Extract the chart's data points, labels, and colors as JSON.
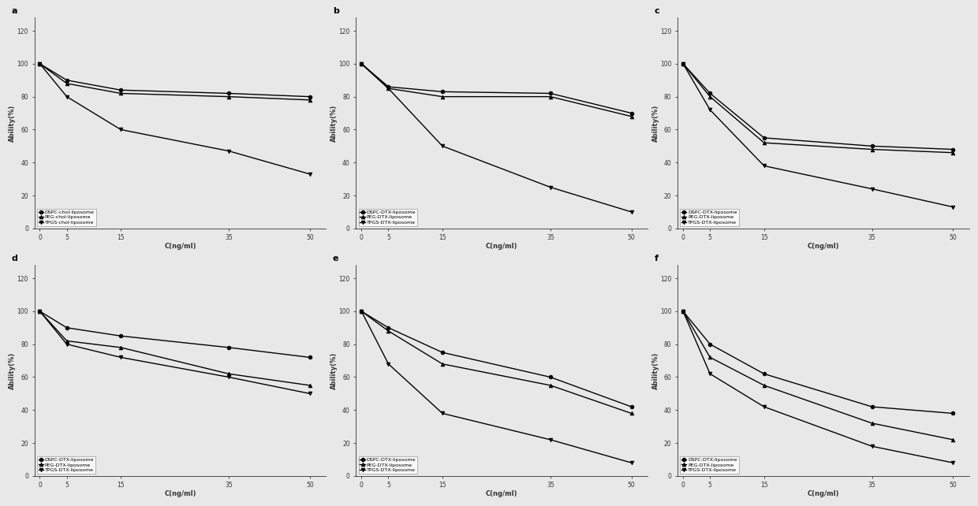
{
  "x": [
    0,
    5,
    15,
    35,
    50
  ],
  "subplots": [
    {
      "label": "a",
      "series": [
        {
          "name": "DSPC-chol-liposome",
          "y": [
            100,
            90,
            84,
            82,
            80
          ],
          "marker": "o"
        },
        {
          "name": "PEG-chol-liposome",
          "y": [
            100,
            88,
            82,
            80,
            78
          ],
          "marker": "^"
        },
        {
          "name": "TPGS-chol-liposome",
          "y": [
            100,
            80,
            60,
            47,
            33
          ],
          "marker": "v"
        }
      ]
    },
    {
      "label": "b",
      "series": [
        {
          "name": "DSPC-DTX-liposome",
          "y": [
            100,
            86,
            83,
            82,
            70
          ],
          "marker": "o"
        },
        {
          "name": "PEG-DTX-liposome",
          "y": [
            100,
            85,
            80,
            80,
            68
          ],
          "marker": "^"
        },
        {
          "name": "TPGS-DTX-liposome",
          "y": [
            100,
            85,
            50,
            25,
            10
          ],
          "marker": "v"
        }
      ]
    },
    {
      "label": "c",
      "series": [
        {
          "name": "DSPC-DTX-liposome",
          "y": [
            100,
            82,
            55,
            50,
            48
          ],
          "marker": "o"
        },
        {
          "name": "PEG-DTX-liposome",
          "y": [
            100,
            80,
            52,
            48,
            46
          ],
          "marker": "^"
        },
        {
          "name": "TPGS-DTX-liposome",
          "y": [
            100,
            72,
            38,
            24,
            13
          ],
          "marker": "v"
        }
      ]
    },
    {
      "label": "d",
      "series": [
        {
          "name": "DSPC-DTX-liposome",
          "y": [
            100,
            90,
            85,
            78,
            72
          ],
          "marker": "o"
        },
        {
          "name": "PEG-DTX-liposome",
          "y": [
            100,
            82,
            78,
            62,
            55
          ],
          "marker": "^"
        },
        {
          "name": "TPGS-DTX-liposome",
          "y": [
            100,
            80,
            72,
            60,
            50
          ],
          "marker": "v"
        }
      ]
    },
    {
      "label": "e",
      "series": [
        {
          "name": "DSPC-DTX-liposome",
          "y": [
            100,
            90,
            75,
            60,
            42
          ],
          "marker": "o"
        },
        {
          "name": "PEG-DTX-liposome",
          "y": [
            100,
            88,
            68,
            55,
            38
          ],
          "marker": "^"
        },
        {
          "name": "TPGS-DTX-liposome",
          "y": [
            100,
            68,
            38,
            22,
            8
          ],
          "marker": "v"
        }
      ]
    },
    {
      "label": "f",
      "series": [
        {
          "name": "DSPC-DTX-liposome",
          "y": [
            100,
            80,
            62,
            42,
            38
          ],
          "marker": "o"
        },
        {
          "name": "PEG-DTX-liposome",
          "y": [
            100,
            72,
            55,
            32,
            22
          ],
          "marker": "^"
        },
        {
          "name": "TPGS-DTX-liposome",
          "y": [
            100,
            62,
            42,
            18,
            8
          ],
          "marker": "v"
        }
      ]
    }
  ],
  "xlabel": "C(ng/ml)",
  "ylabel": "Ability(%)",
  "xticks": [
    0,
    5,
    15,
    35,
    50
  ],
  "yticks": [
    0,
    20,
    40,
    60,
    80,
    100,
    120
  ],
  "ylim": [
    0,
    128
  ],
  "xlim": [
    -1,
    53
  ],
  "background_color": "#e8e8e8",
  "line_color": "#000000",
  "markersize": 3.5,
  "linewidth": 1.0,
  "legend_fontsize": 4.5,
  "label_fontsize": 6.0,
  "tick_fontsize": 5.5,
  "subplot_label_fontsize": 8
}
